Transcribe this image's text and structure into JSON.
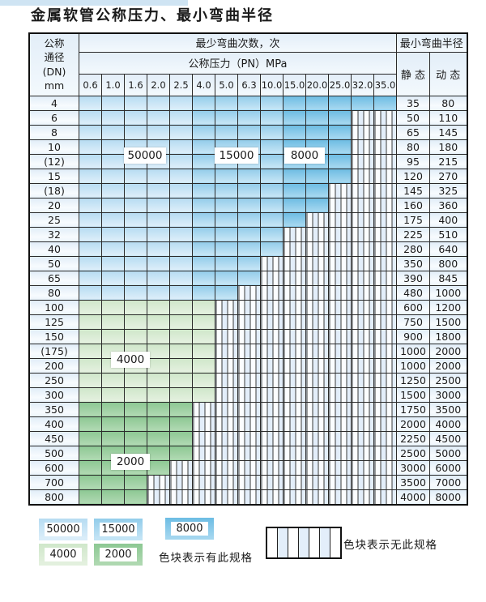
{
  "page": {
    "title": "金属软管公称压力、最小弯曲半径"
  },
  "table": {
    "corner_lines": [
      "公称",
      "通径",
      "(DN)",
      "mm"
    ],
    "bend_cycles_header": "最少弯曲次数，次",
    "pressure_header": "公称压力（PN）MPa",
    "pressure_columns": [
      "0.6",
      "1.0",
      "1.6",
      "2.0",
      "2.5",
      "4.0",
      "5.0",
      "6.3",
      "10.0",
      "15.0",
      "20.0",
      "25.0",
      "32.0",
      "35.0"
    ],
    "bend_radius_header": "最小弯曲半径",
    "static_header": "静 态",
    "dynamic_header": "动 态",
    "cycle_bands_by_pressure_column": {
      "50000": [
        "0.6",
        "1.0",
        "1.6",
        "2.0",
        "2.5"
      ],
      "15000": [
        "4.0",
        "5.0",
        "6.3",
        "10.0"
      ],
      "8000": [
        "15.0",
        "20.0",
        "25.0",
        "32.0",
        "35.0"
      ]
    },
    "overlay_labels": {
      "l50000": "50000",
      "l15000": "15000",
      "l8000": "8000",
      "l4000": "4000",
      "l2000": "2000"
    },
    "rows": [
      {
        "dn": "4",
        "colored": 14,
        "band": "blue",
        "static": "35",
        "dynamic": "80"
      },
      {
        "dn": "6",
        "colored": 12,
        "band": "blue",
        "static": "50",
        "dynamic": "110"
      },
      {
        "dn": "8",
        "colored": 12,
        "band": "blue",
        "static": "65",
        "dynamic": "145"
      },
      {
        "dn": "10",
        "colored": 12,
        "band": "blue",
        "static": "80",
        "dynamic": "180"
      },
      {
        "dn": "(12)",
        "colored": 12,
        "band": "blue",
        "static": "95",
        "dynamic": "215"
      },
      {
        "dn": "15",
        "colored": 12,
        "band": "blue",
        "static": "120",
        "dynamic": "270"
      },
      {
        "dn": "(18)",
        "colored": 11,
        "band": "blue",
        "static": "145",
        "dynamic": "325"
      },
      {
        "dn": "20",
        "colored": 11,
        "band": "blue",
        "static": "160",
        "dynamic": "360"
      },
      {
        "dn": "25",
        "colored": 10,
        "band": "blue",
        "static": "175",
        "dynamic": "400"
      },
      {
        "dn": "32",
        "colored": 9,
        "band": "blue",
        "static": "225",
        "dynamic": "510"
      },
      {
        "dn": "40",
        "colored": 9,
        "band": "blue",
        "static": "280",
        "dynamic": "640"
      },
      {
        "dn": "50",
        "colored": 8,
        "band": "blue",
        "static": "350",
        "dynamic": "800"
      },
      {
        "dn": "65",
        "colored": 8,
        "band": "blue",
        "static": "390",
        "dynamic": "845"
      },
      {
        "dn": "80",
        "colored": 7,
        "band": "blue",
        "static": "480",
        "dynamic": "1000"
      },
      {
        "dn": "100",
        "colored": 6,
        "band": "g4000",
        "static": "600",
        "dynamic": "1200"
      },
      {
        "dn": "125",
        "colored": 6,
        "band": "g4000",
        "static": "750",
        "dynamic": "1500"
      },
      {
        "dn": "150",
        "colored": 6,
        "band": "g4000",
        "static": "900",
        "dynamic": "1800"
      },
      {
        "dn": "(175)",
        "colored": 6,
        "band": "g4000",
        "static": "1000",
        "dynamic": "2000"
      },
      {
        "dn": "200",
        "colored": 6,
        "band": "g4000",
        "static": "1000",
        "dynamic": "2000"
      },
      {
        "dn": "250",
        "colored": 6,
        "band": "g4000",
        "static": "1250",
        "dynamic": "2500"
      },
      {
        "dn": "300",
        "colored": 6,
        "band": "g4000",
        "static": "1500",
        "dynamic": "3000"
      },
      {
        "dn": "350",
        "colored": 5,
        "band": "g2000",
        "static": "1750",
        "dynamic": "3500"
      },
      {
        "dn": "400",
        "colored": 5,
        "band": "g2000",
        "static": "2000",
        "dynamic": "4000"
      },
      {
        "dn": "450",
        "colored": 5,
        "band": "g2000",
        "static": "2250",
        "dynamic": "4500"
      },
      {
        "dn": "500",
        "colored": 5,
        "band": "g2000",
        "static": "2500",
        "dynamic": "5000"
      },
      {
        "dn": "600",
        "colored": 4,
        "band": "g2000",
        "static": "3000",
        "dynamic": "6000"
      },
      {
        "dn": "700",
        "colored": 3,
        "band": "g2000",
        "static": "3500",
        "dynamic": "7000"
      },
      {
        "dn": "800",
        "colored": 3,
        "band": "g2000",
        "static": "4000",
        "dynamic": "8000"
      }
    ]
  },
  "legend": {
    "items": [
      {
        "label": "50000",
        "type": "b1"
      },
      {
        "label": "15000",
        "type": "b2"
      },
      {
        "label": "8000",
        "type": "b3"
      },
      {
        "label": "4000",
        "type": "g1"
      },
      {
        "label": "2000",
        "type": "g2"
      }
    ],
    "has_spec_text": "色块表示有此规格",
    "no_spec_text": "色块表示无此规格"
  },
  "colors": {
    "blue_50000": "#bfe0f2",
    "blue_15000": "#9cd0ec",
    "blue_8000": "#79c2e6",
    "green_4000": "#d5e9d0",
    "green_2000": "#9ccf9f",
    "stripe_fill": "#e3eefa",
    "header_fill": "#e9f2fa"
  }
}
